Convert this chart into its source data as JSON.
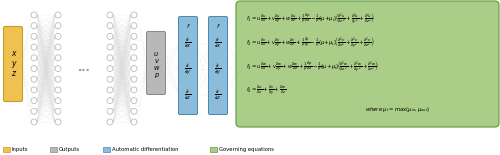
{
  "figsize": [
    5.0,
    1.55
  ],
  "dpi": 100,
  "bg_color": "#ffffff",
  "input_labels": [
    "x",
    "y",
    "z"
  ],
  "output_labels": [
    "u",
    "v",
    "w",
    "p"
  ],
  "input_color": "#f0c050",
  "input_edge_color": "#c8a020",
  "output_color": "#b8b8b8",
  "output_edge_color": "#888888",
  "autodiff_color": "#8bbcda",
  "autodiff_edge_color": "#4a88b0",
  "equation_color": "#aace88",
  "equation_edge_color": "#5a9a40",
  "node_edge_color": "#b0b0b0",
  "node_face_color": "#ffffff",
  "conn_color": "#cccccc",
  "legend_items": [
    {
      "label": "Inputs",
      "color": "#f0c050",
      "edge": "#c8a020"
    },
    {
      "label": "Outputs",
      "color": "#b8b8b8",
      "edge": "#888888"
    },
    {
      "label": "Automatic differentiation",
      "color": "#8bbcda",
      "edge": "#4a88b0"
    },
    {
      "label": "Governing equations",
      "color": "#aace88",
      "edge": "#5a9a40"
    }
  ]
}
